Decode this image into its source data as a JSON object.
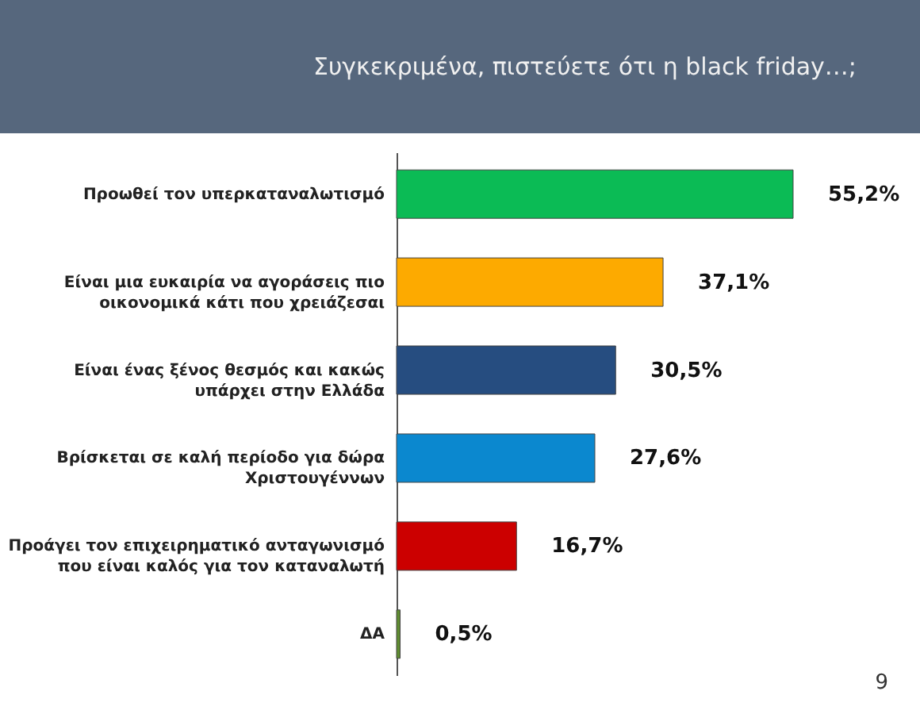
{
  "chart_data": {
    "type": "bar",
    "orientation": "horizontal",
    "title": "Συγκεκριμένα, πιστεύετε ότι η black friday…;",
    "categories": [
      "Προωθεί τον υπερκαταναλωτισμό",
      "Είναι μια ευκαιρία να αγοράσεις πιο οικονομικά κάτι που χρειάζεσαι",
      "Είναι ένας ξένος θεσμός και κακώς υπάρχει στην Ελλάδα",
      "Βρίσκεται σε καλή περίοδο για δώρα Χριστουγέννων",
      "Προάγει τον επιχειρηματικό ανταγωνισμό που είναι καλός για τον καταναλωτή",
      "ΔΑ"
    ],
    "values": [
      55.2,
      37.1,
      30.5,
      27.6,
      16.7,
      0.5
    ],
    "value_labels": [
      "55,2%",
      "37,1%",
      "30,5%",
      "27,6%",
      "16,7%",
      "0,5%"
    ],
    "colors": [
      "#0bbb55",
      "#fdaa00",
      "#264d80",
      "#0b88cf",
      "#cc0000",
      "#5f8c30"
    ],
    "annotations": [
      "9"
    ]
  }
}
